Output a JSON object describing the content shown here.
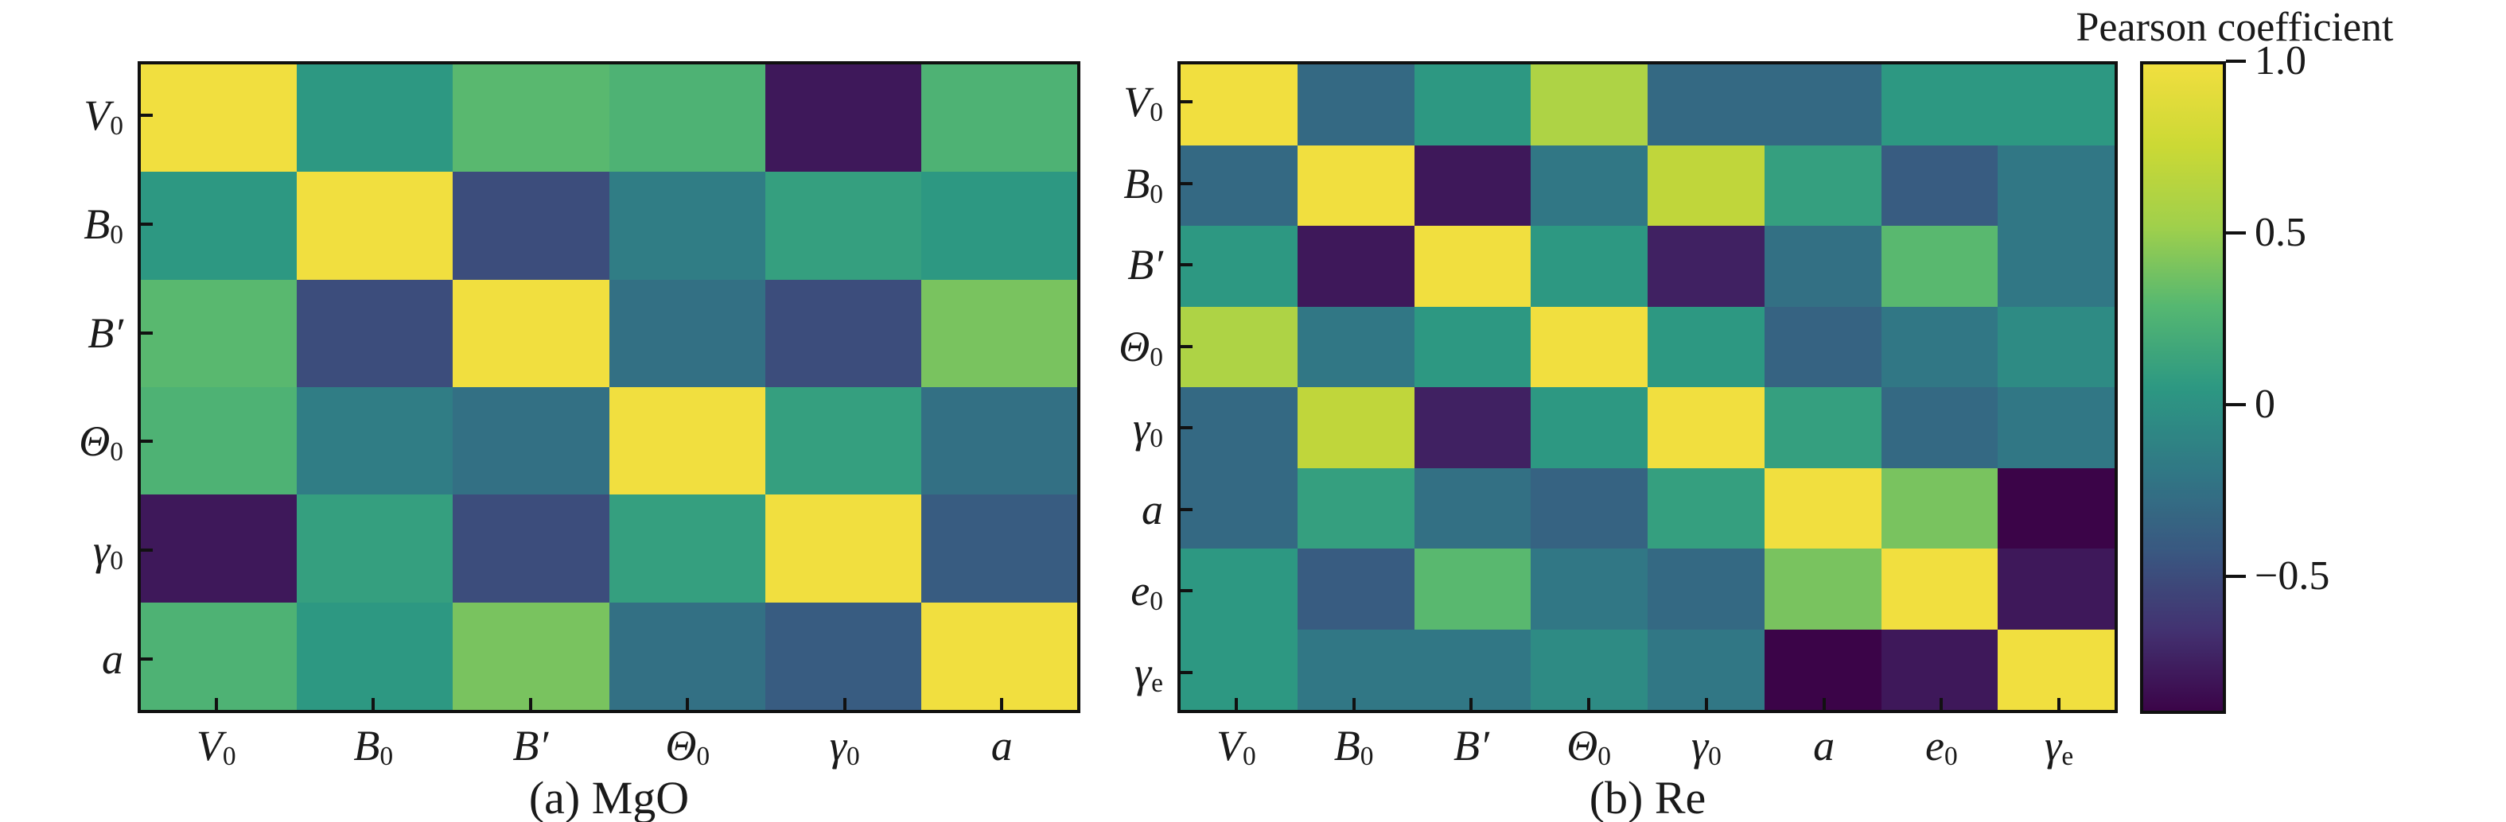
{
  "colorbar": {
    "title": "Pearson coefficient",
    "vmin": -0.9,
    "vmax": 1.0,
    "colormap": "viridis",
    "ticks": [
      {
        "label": "1.0",
        "value": 1.0
      },
      {
        "label": "0.5",
        "value": 0.5
      },
      {
        "label": "0",
        "value": 0.0
      },
      {
        "label": "−0.5",
        "value": -0.5
      }
    ]
  },
  "chart_data": [
    {
      "type": "heatmap",
      "caption": "(a) MgO",
      "colormap": "viridis",
      "vmin": -0.9,
      "vmax": 1.0,
      "legend_position": "shared colorbar at right",
      "grid": false,
      "variables": [
        {
          "base": "V",
          "sub": "0"
        },
        {
          "base": "B",
          "sub": "0"
        },
        {
          "base": "B′",
          "sub": ""
        },
        {
          "base": "Θ",
          "sub": "0"
        },
        {
          "base": "γ",
          "sub": "0"
        },
        {
          "base": "a",
          "sub": ""
        }
      ],
      "matrix": [
        [
          1.0,
          0.05,
          0.3,
          0.25,
          -0.8,
          0.25
        ],
        [
          0.05,
          1.0,
          -0.5,
          -0.15,
          0.1,
          0.05
        ],
        [
          0.3,
          -0.5,
          1.0,
          -0.25,
          -0.5,
          0.4
        ],
        [
          0.25,
          -0.15,
          -0.25,
          1.0,
          0.1,
          -0.25
        ],
        [
          -0.8,
          0.1,
          -0.5,
          0.1,
          1.0,
          -0.4
        ],
        [
          0.25,
          0.05,
          0.4,
          -0.25,
          -0.4,
          1.0
        ]
      ]
    },
    {
      "type": "heatmap",
      "caption": "(b) Re",
      "colormap": "viridis",
      "vmin": -0.9,
      "vmax": 1.0,
      "legend_position": "shared colorbar at right",
      "grid": false,
      "variables": [
        {
          "base": "V",
          "sub": "0"
        },
        {
          "base": "B",
          "sub": "0"
        },
        {
          "base": "B′",
          "sub": ""
        },
        {
          "base": "Θ",
          "sub": "0"
        },
        {
          "base": "γ",
          "sub": "0"
        },
        {
          "base": "a",
          "sub": ""
        },
        {
          "base": "e",
          "sub": "0"
        },
        {
          "base": "γ",
          "sub": "e"
        }
      ],
      "matrix": [
        [
          1.0,
          -0.3,
          0.05,
          0.6,
          -0.3,
          -0.3,
          0.05,
          0.05
        ],
        [
          -0.3,
          1.0,
          -0.8,
          -0.2,
          0.7,
          0.1,
          -0.4,
          -0.2
        ],
        [
          0.05,
          -0.8,
          1.0,
          0.05,
          -0.75,
          -0.25,
          0.3,
          -0.2
        ],
        [
          0.6,
          -0.2,
          0.05,
          1.0,
          0.05,
          -0.35,
          -0.2,
          -0.05
        ],
        [
          -0.3,
          0.7,
          -0.75,
          0.05,
          1.0,
          0.1,
          -0.3,
          -0.2
        ],
        [
          -0.3,
          0.1,
          -0.25,
          -0.35,
          0.1,
          1.0,
          0.4,
          -0.9
        ],
        [
          0.05,
          -0.4,
          0.3,
          -0.2,
          -0.3,
          0.4,
          1.0,
          -0.8
        ],
        [
          0.05,
          -0.2,
          -0.2,
          -0.05,
          -0.2,
          -0.9,
          -0.8,
          1.0
        ]
      ]
    }
  ]
}
